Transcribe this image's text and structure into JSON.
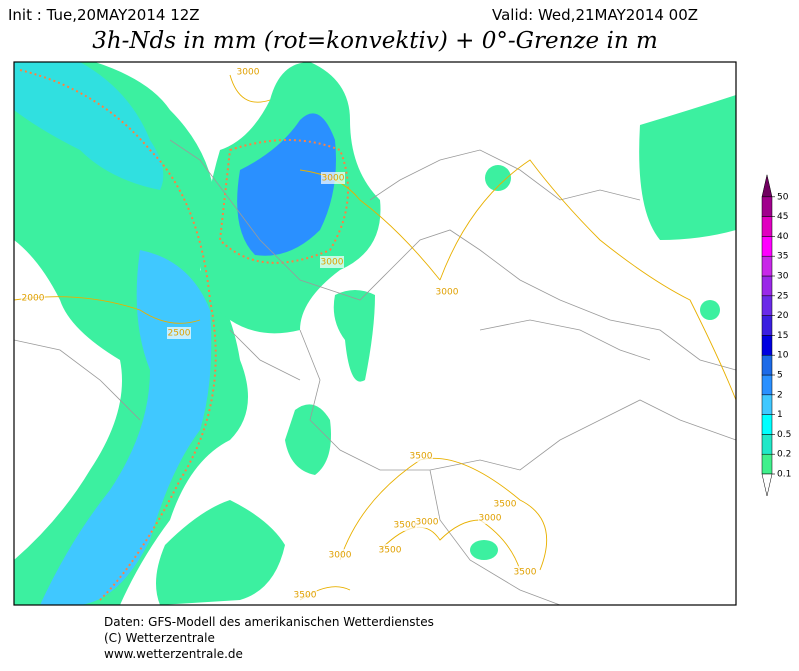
{
  "header": {
    "init": "Init : Tue,20MAY2014 12Z",
    "valid": "Valid: Wed,21MAY2014 00Z",
    "title": "3h-Nds in mm (rot=konvektiv) + 0°-Grenze in m"
  },
  "legend": {
    "levels": [
      0.1,
      0.2,
      0.5,
      1,
      2,
      5,
      10,
      15,
      20,
      25,
      30,
      35,
      40,
      45,
      50
    ],
    "colors": [
      "#40f08c",
      "#20e8c8",
      "#00ffff",
      "#40c8ff",
      "#2a90ff",
      "#1c6ae8",
      "#0000e0",
      "#3a1ee0",
      "#6a2ae8",
      "#9a28e8",
      "#c828e8",
      "#ff00ff",
      "#e000c0",
      "#a0008c"
    ],
    "over_color": "#700060",
    "under_color": "#ffffff"
  },
  "contour_labels": [
    "3000",
    "3000",
    "3000",
    "3000",
    "2000",
    "2500",
    "3500",
    "3500",
    "3500",
    "3000",
    "3000",
    "3500",
    "3000",
    "3500",
    "3500"
  ],
  "footer": [
    "Daten: GFS-Modell des amerikanischen Wetterdienstes",
    "(C) Wetterzentrale",
    "www.wetterzentrale.de"
  ]
}
